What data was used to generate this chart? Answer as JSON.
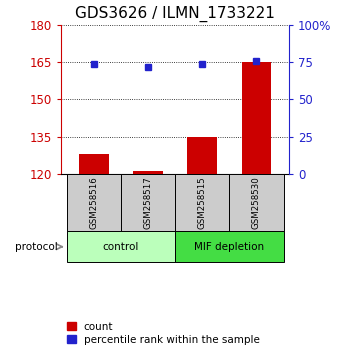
{
  "title": "GDS3626 / ILMN_1733221",
  "samples": [
    "GSM258516",
    "GSM258517",
    "GSM258515",
    "GSM258530"
  ],
  "counts": [
    128,
    121,
    135,
    165
  ],
  "percentile_ranks": [
    74,
    72,
    74,
    76
  ],
  "groups": [
    {
      "label": "control",
      "span": [
        0,
        2
      ],
      "color": "#bbffbb"
    },
    {
      "label": "MIF depletion",
      "span": [
        2,
        4
      ],
      "color": "#44dd44"
    }
  ],
  "ylim_left": [
    120,
    180
  ],
  "yticks_left": [
    120,
    135,
    150,
    165,
    180
  ],
  "ylim_right": [
    0,
    100
  ],
  "yticks_right": [
    0,
    25,
    50,
    75,
    100
  ],
  "bar_color": "#cc0000",
  "dot_color": "#2222cc",
  "bar_width": 0.55,
  "protocol_label": "protocol",
  "legend_count_label": "count",
  "legend_pct_label": "percentile rank within the sample",
  "sample_box_color": "#cccccc",
  "left_axis_color": "#cc0000",
  "right_axis_color": "#2222cc",
  "title_fontsize": 11
}
